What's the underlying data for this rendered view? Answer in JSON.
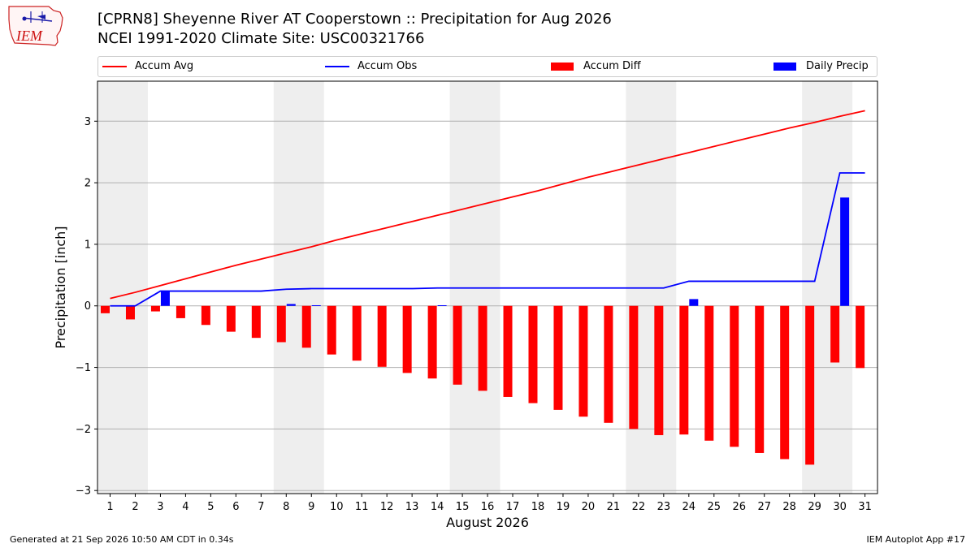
{
  "logo": {
    "text": "IEM"
  },
  "title_line1": "[CPRN8] Sheyenne River  AT Cooperstown :: Precipitation for Aug 2026",
  "title_line2": "NCEI 1991-2020 Climate Site: USC00321766",
  "legend": [
    {
      "label": "Accum Avg",
      "kind": "line",
      "color": "#ff0000"
    },
    {
      "label": "Accum Obs",
      "kind": "line",
      "color": "#0000ff"
    },
    {
      "label": "Accum Diff",
      "kind": "bar",
      "color": "#ff0000"
    },
    {
      "label": "Daily Precip",
      "kind": "bar",
      "color": "#0000ff"
    }
  ],
  "footer_left": "Generated at 21 Sep 2026 10:50 AM CDT in 0.34s",
  "footer_right": "IEM Autoplot App #17",
  "chart_data": {
    "type": "bar",
    "xlabel": "August 2026",
    "ylabel": "Precipitation [inch]",
    "ylim": [
      -3.05,
      3.65
    ],
    "yticks": [
      -3,
      -2,
      -1,
      0,
      1,
      2,
      3
    ],
    "ytick_labels": [
      "−3",
      "−2",
      "−1",
      "0",
      "1",
      "2",
      "3"
    ],
    "x": [
      1,
      2,
      3,
      4,
      5,
      6,
      7,
      8,
      9,
      10,
      11,
      12,
      13,
      14,
      15,
      16,
      17,
      18,
      19,
      20,
      21,
      22,
      23,
      24,
      25,
      26,
      27,
      28,
      29,
      30,
      31
    ],
    "weekend_pairs": [
      [
        1,
        2
      ],
      [
        8,
        9
      ],
      [
        15,
        16
      ],
      [
        22,
        23
      ],
      [
        29,
        30
      ]
    ],
    "grid": "horizontal",
    "series": [
      {
        "name": "Accum Avg",
        "kind": "line",
        "color": "#ff0000",
        "values": [
          0.12,
          0.22,
          0.33,
          0.44,
          0.55,
          0.66,
          0.76,
          0.86,
          0.96,
          1.07,
          1.17,
          1.27,
          1.37,
          1.47,
          1.57,
          1.67,
          1.77,
          1.87,
          1.98,
          2.09,
          2.19,
          2.29,
          2.39,
          2.49,
          2.59,
          2.69,
          2.79,
          2.89,
          2.98,
          3.08,
          3.17
        ]
      },
      {
        "name": "Accum Obs",
        "kind": "line",
        "color": "#0000ff",
        "values": [
          0.0,
          0.0,
          0.24,
          0.24,
          0.24,
          0.24,
          0.24,
          0.27,
          0.28,
          0.28,
          0.28,
          0.28,
          0.28,
          0.29,
          0.29,
          0.29,
          0.29,
          0.29,
          0.29,
          0.29,
          0.29,
          0.29,
          0.29,
          0.4,
          0.4,
          0.4,
          0.4,
          0.4,
          0.4,
          2.16,
          2.16
        ]
      },
      {
        "name": "Accum Diff",
        "kind": "bar",
        "color": "#ff0000",
        "values": [
          -0.12,
          -0.22,
          -0.09,
          -0.2,
          -0.31,
          -0.42,
          -0.52,
          -0.59,
          -0.68,
          -0.79,
          -0.89,
          -0.99,
          -1.09,
          -1.18,
          -1.28,
          -1.38,
          -1.48,
          -1.58,
          -1.69,
          -1.8,
          -1.9,
          -2.0,
          -2.1,
          -2.09,
          -2.19,
          -2.29,
          -2.39,
          -2.49,
          -2.58,
          -0.92,
          -1.01
        ]
      },
      {
        "name": "Daily Precip",
        "kind": "bar",
        "color": "#0000ff",
        "values": [
          0.0,
          0.0,
          0.24,
          0.0,
          0.0,
          0.0,
          0.0,
          0.03,
          0.01,
          0.0,
          0.0,
          0.0,
          0.0,
          0.01,
          0.0,
          0.0,
          0.0,
          0.0,
          0.0,
          0.0,
          0.0,
          0.0,
          0.0,
          0.11,
          0.0,
          0.0,
          0.0,
          0.0,
          0.0,
          1.76,
          0.0
        ]
      }
    ]
  }
}
